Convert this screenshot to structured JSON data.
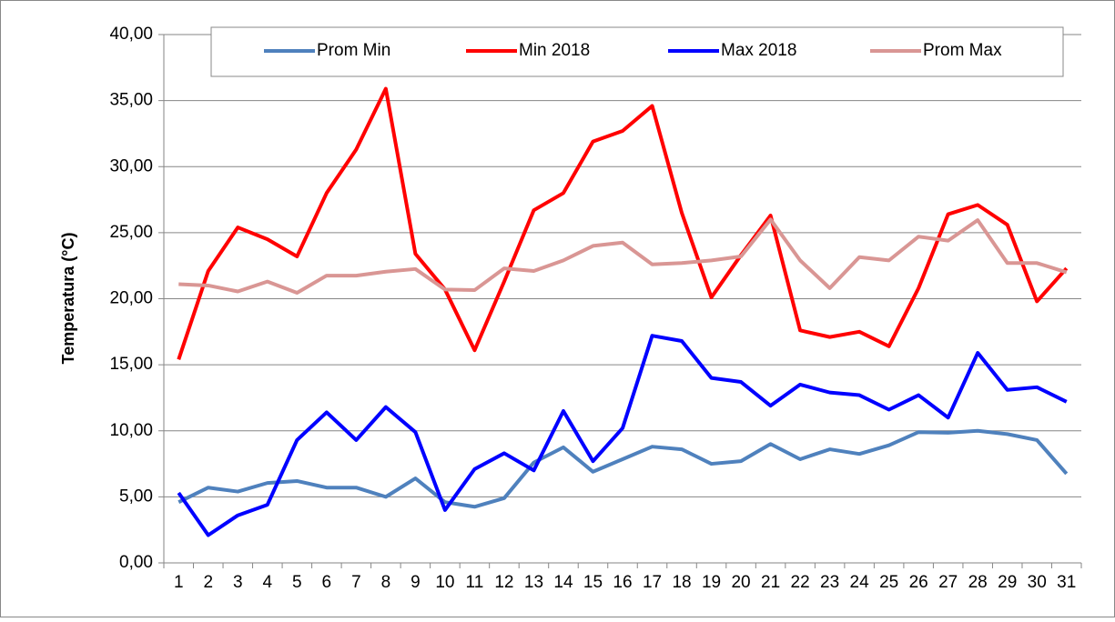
{
  "chart_data": {
    "type": "line",
    "y_label": "Temperatura (°C)",
    "categories": [
      "1",
      "2",
      "3",
      "4",
      "5",
      "6",
      "7",
      "8",
      "9",
      "10",
      "11",
      "12",
      "13",
      "14",
      "15",
      "16",
      "17",
      "18",
      "19",
      "20",
      "21",
      "22",
      "23",
      "24",
      "25",
      "26",
      "27",
      "28",
      "29",
      "30",
      "31"
    ],
    "series": [
      {
        "name": "Prom Min",
        "color": "#4f81bd",
        "values": [
          4.6,
          5.7,
          5.4,
          6.05,
          6.2,
          5.7,
          5.7,
          5.0,
          6.4,
          4.6,
          4.25,
          4.9,
          7.6,
          8.75,
          6.9,
          7.85,
          8.8,
          8.6,
          7.5,
          7.7,
          9.0,
          7.85,
          8.6,
          8.25,
          8.9,
          9.9,
          9.85,
          10.0,
          9.75,
          9.3,
          6.75
        ]
      },
      {
        "name": "Min 2018",
        "color": "#ff0000",
        "values": [
          15.4,
          22.1,
          25.4,
          24.5,
          23.2,
          28.0,
          31.3,
          35.9,
          23.4,
          20.7,
          16.1,
          21.3,
          26.7,
          28.0,
          31.9,
          32.7,
          34.6,
          26.5,
          20.1,
          23.3,
          26.3,
          17.6,
          17.1,
          17.5,
          16.4,
          20.8,
          26.4,
          27.1,
          25.6,
          19.8,
          22.3
        ]
      },
      {
        "name": "Max 2018",
        "color": "#0000ff",
        "values": [
          5.3,
          2.1,
          3.6,
          4.4,
          9.3,
          11.4,
          9.3,
          11.8,
          9.9,
          4.0,
          7.1,
          8.3,
          7.0,
          11.5,
          7.7,
          10.2,
          17.2,
          16.8,
          14.0,
          13.7,
          11.9,
          13.5,
          12.9,
          12.7,
          11.6,
          12.7,
          11.0,
          15.9,
          13.1,
          13.3,
          12.2
        ]
      },
      {
        "name": "Prom Max",
        "color": "#d99694",
        "values": [
          21.1,
          21.0,
          20.55,
          21.3,
          20.45,
          21.75,
          21.75,
          22.05,
          22.25,
          20.7,
          20.65,
          22.3,
          22.1,
          22.9,
          24.0,
          24.25,
          22.6,
          22.7,
          22.9,
          23.2,
          26.0,
          22.9,
          20.8,
          23.15,
          22.9,
          24.7,
          24.4,
          25.95,
          22.7,
          22.7,
          22.0
        ]
      }
    ],
    "ylim": [
      0,
      40
    ],
    "yticks": [
      {
        "value": 0,
        "label": "0,00"
      },
      {
        "value": 5,
        "label": "5,00"
      },
      {
        "value": 10,
        "label": "10,00"
      },
      {
        "value": 15,
        "label": "15,00"
      },
      {
        "value": 20,
        "label": "20,00"
      },
      {
        "value": 25,
        "label": "25,00"
      },
      {
        "value": 30,
        "label": "30,00"
      },
      {
        "value": 35,
        "label": "35,00"
      },
      {
        "value": 40,
        "label": "40,00"
      }
    ],
    "grid": true
  }
}
